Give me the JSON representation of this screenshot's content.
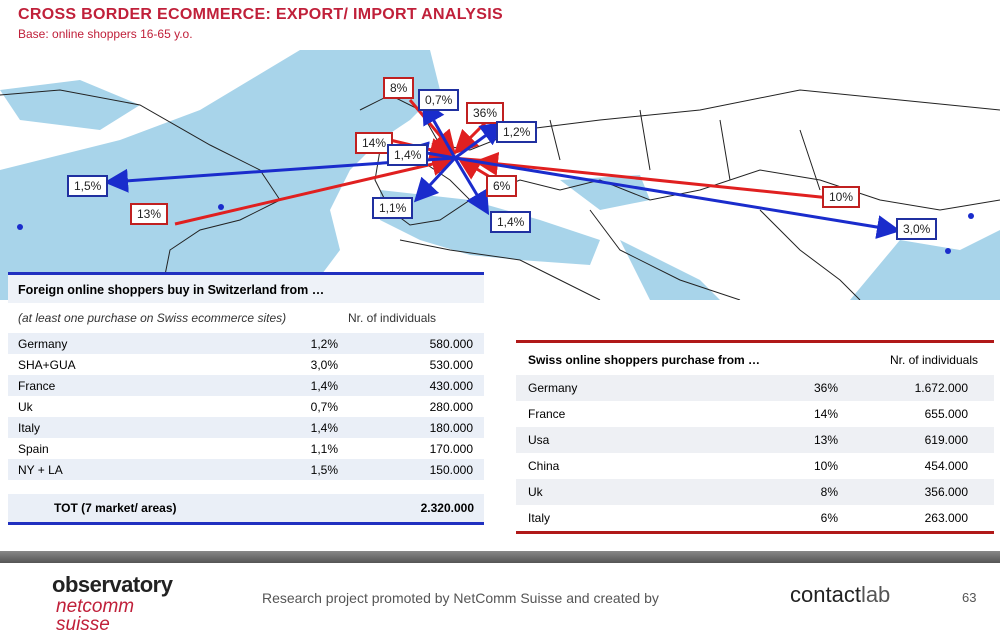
{
  "header": {
    "title": "CROSS BORDER ECOMMERCE: EXPORT/ IMPORT ANALYSIS",
    "subtitle": "Base: online shoppers 16-65 y.o."
  },
  "map_labels": {
    "red": [
      "8%",
      "36%",
      "14%",
      "6%",
      "13%",
      "10%"
    ],
    "blue": [
      "0,7%",
      "1,2%",
      "1,4%",
      "1,5%",
      "1,1%",
      "1,4%",
      "3,0%"
    ]
  },
  "left_table": {
    "title": "Foreign online shoppers buy in Switzerland from …",
    "col_note": "(at least one purchase on Swiss ecommerce sites)",
    "col_individuals": "Nr. of individuals",
    "rows": [
      {
        "name": "Germany",
        "pct": "1,2%",
        "n": "580.000"
      },
      {
        "name": "SHA+GUA",
        "pct": "3,0%",
        "n": "530.000"
      },
      {
        "name": "France",
        "pct": "1,4%",
        "n": "430.000"
      },
      {
        "name": "Uk",
        "pct": "0,7%",
        "n": "280.000"
      },
      {
        "name": "Italy",
        "pct": "1,4%",
        "n": "180.000"
      },
      {
        "name": "Spain",
        "pct": "1,1%",
        "n": "170.000"
      },
      {
        "name": "NY + LA",
        "pct": "1,5%",
        "n": "150.000"
      }
    ],
    "total_label": "TOT  (7 market/ areas)",
    "total_value": "2.320.000"
  },
  "right_table": {
    "title": "Swiss online shoppers purchase from …",
    "col_individuals": "Nr. of individuals",
    "rows": [
      {
        "name": "Germany",
        "pct": "36%",
        "n": "1.672.000"
      },
      {
        "name": "France",
        "pct": "14%",
        "n": "655.000"
      },
      {
        "name": "Usa",
        "pct": "13%",
        "n": "619.000"
      },
      {
        "name": "China",
        "pct": "10%",
        "n": "454.000"
      },
      {
        "name": "Uk",
        "pct": "8%",
        "n": "356.000"
      },
      {
        "name": "Italy",
        "pct": "6%",
        "n": "263.000"
      }
    ]
  },
  "footer": {
    "logo_line1": "observatory",
    "logo_line2": "netcomm",
    "logo_line3": "suisse",
    "research_text": "Research project promoted by NetComm Suisse and created by",
    "contact_logo_a": "contact",
    "contact_logo_b": "lab",
    "page_number": "63"
  },
  "colors": {
    "accent_red": "#c0203a",
    "accent_blue": "#2030c0",
    "sea": "#9fd0e6"
  }
}
